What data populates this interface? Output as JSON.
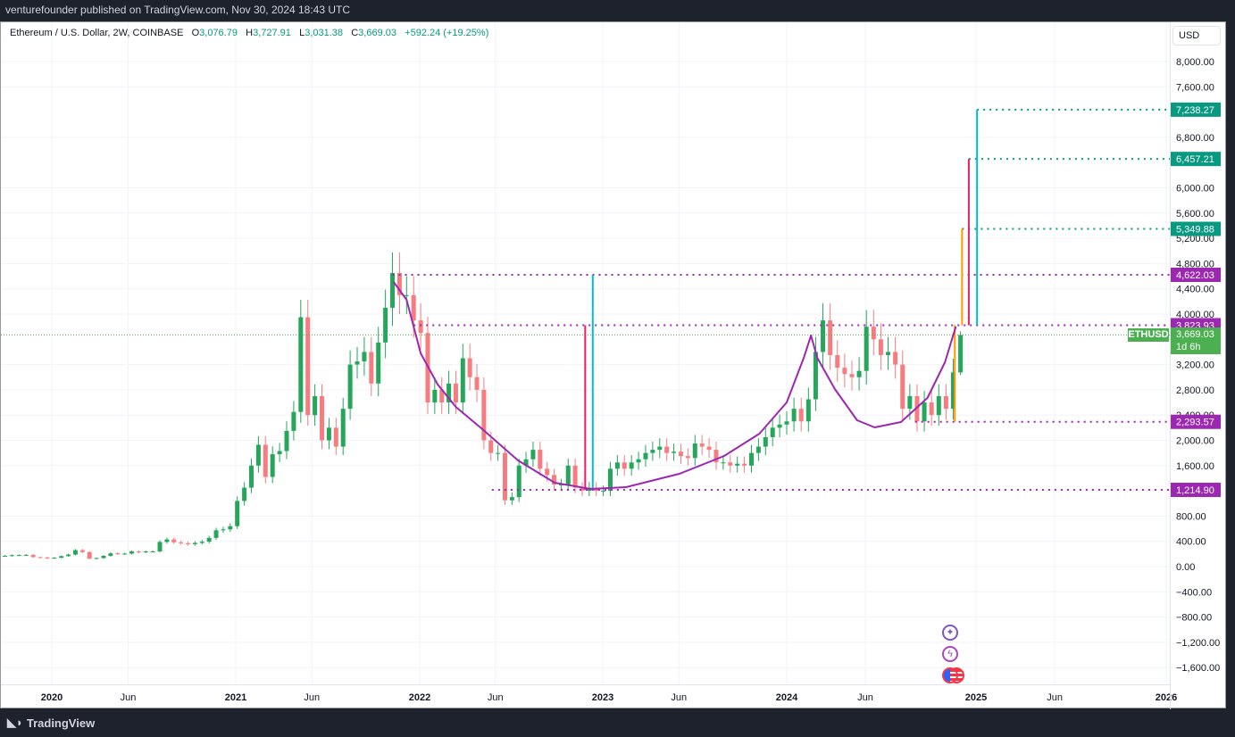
{
  "published": "venturefounder published on TradingView.com, Nov 30, 2024 18:43 UTC",
  "legend": {
    "symbol": "Ethereum / U.S. Dollar, 2W, COINBASE",
    "o_label": "O",
    "o": "3,076.79",
    "h_label": "H",
    "h": "3,727.91",
    "l_label": "L",
    "l": "3,031.38",
    "c_label": "C",
    "c": "3,669.03",
    "change": "+592.24 (+19.25%)"
  },
  "currency": "USD",
  "brand": "TradingView",
  "price_tag": {
    "symbol": "ETHUSD",
    "price": "3,669.03",
    "countdown": "1d 6h",
    "color": "#4caf50"
  },
  "colors": {
    "up": "#26a65b",
    "down": "#f77c80",
    "curve": "#9c27b0",
    "level": "#9c27b0",
    "target": "#089981",
    "cyan": "#00bcd4",
    "red": "#e91e63",
    "orange": "#ff9800"
  },
  "event_icons": [
    "sparkle-icon",
    "lightning-icon",
    "us-flag-icon"
  ],
  "chart_data": {
    "type": "candlestick",
    "interval": "2W",
    "yticks": [
      8000,
      7600,
      6800,
      6000,
      5600,
      5200,
      4800,
      4400,
      4000,
      3200,
      2800,
      2400,
      2000,
      1600,
      800,
      400,
      0,
      -400,
      -800,
      -1200,
      -1600
    ],
    "ylim": [
      -1900,
      8400
    ],
    "xticks": [
      {
        "label": "2020",
        "date": "2020-01-01"
      },
      {
        "label": "Jun",
        "date": "2020-06-01"
      },
      {
        "label": "2021",
        "date": "2021-01-01"
      },
      {
        "label": "Jun",
        "date": "2021-06-01"
      },
      {
        "label": "2022",
        "date": "2022-01-01"
      },
      {
        "label": "Jun",
        "date": "2022-06-01"
      },
      {
        "label": "2023",
        "date": "2023-01-01"
      },
      {
        "label": "Jun",
        "date": "2023-06-01"
      },
      {
        "label": "2024",
        "date": "2024-01-01"
      },
      {
        "label": "Jun",
        "date": "2024-06-01"
      },
      {
        "label": "2025",
        "date": "2025-01-01"
      },
      {
        "label": "Jun",
        "date": "2025-06-01"
      },
      {
        "label": "2026",
        "date": "2026-01-01"
      }
    ],
    "start": "2019-09-23",
    "closes": [
      170,
      180,
      182,
      185,
      150,
      145,
      130,
      140,
      165,
      190,
      260,
      230,
      125,
      135,
      170,
      210,
      200,
      205,
      240,
      230,
      240,
      240,
      390,
      430,
      385,
      370,
      355,
      375,
      395,
      455,
      575,
      590,
      640,
      1040,
      1250,
      1600,
      1930,
      1420,
      1780,
      1830,
      2150,
      2450,
      3950,
      2400,
      2700,
      2000,
      2200,
      1900,
      2500,
      3200,
      3250,
      3400,
      2900,
      3550,
      4100,
      4650,
      4300,
      4300,
      3900,
      3700,
      2600,
      2800,
      2600,
      2900,
      2600,
      3300,
      3000,
      2800,
      2000,
      1800,
      1800,
      1050,
      1100,
      1600,
      1700,
      1850,
      1550,
      1450,
      1300,
      1300,
      1600,
      1250,
      1200,
      1250,
      1200,
      1200,
      1550,
      1650,
      1550,
      1650,
      1700,
      1800,
      1850,
      1900,
      1800,
      1820,
      1750,
      1720,
      1950,
      1900,
      1850,
      1650,
      1650,
      1600,
      1630,
      1600,
      1800,
      1900,
      2050,
      2200,
      2250,
      2300,
      2500,
      2300,
      2650,
      3400,
      3900,
      3350,
      3150,
      3050,
      3000,
      3100,
      3800,
      3600,
      3350,
      3400,
      3200,
      2500,
      2700,
      2300,
      2600,
      2400,
      2700,
      2500,
      3076.79,
      3669.03
    ],
    "last": {
      "o": 3076.79,
      "h": 3727.91,
      "l": 3031.38,
      "c": 3669.03
    },
    "curve": [
      [
        "2021-11-10",
        4510
      ],
      [
        "2021-12-06",
        4226
      ],
      [
        "2022-01-03",
        3378
      ],
      [
        "2022-02-06",
        2883
      ],
      [
        "2022-03-14",
        2530
      ],
      [
        "2022-05-06",
        2177
      ],
      [
        "2022-07-16",
        1682
      ],
      [
        "2022-09-27",
        1329
      ],
      [
        "2022-12-08",
        1230
      ],
      [
        "2023-02-16",
        1258
      ],
      [
        "2023-06-02",
        1470
      ],
      [
        "2023-08-30",
        1753
      ],
      [
        "2023-11-08",
        2106
      ],
      [
        "2024-01-01",
        2601
      ],
      [
        "2024-02-03",
        3307
      ],
      [
        "2024-02-17",
        3661
      ],
      [
        "2024-02-29",
        3307
      ],
      [
        "2024-04-03",
        2813
      ],
      [
        "2024-05-16",
        2318
      ],
      [
        "2024-06-19",
        2205
      ],
      [
        "2024-08-09",
        2290
      ],
      [
        "2024-09-29",
        2671
      ],
      [
        "2024-11-02",
        3237
      ],
      [
        "2024-11-23",
        3802
      ]
    ],
    "levels": [
      {
        "value": 7238.27,
        "label": "7,238.27",
        "from": "2025-01-03",
        "color": "target"
      },
      {
        "value": 6457.21,
        "label": "6,457.21",
        "from": "2024-12-18",
        "color": "target"
      },
      {
        "value": 5349.88,
        "label": "5,349.88",
        "from": "2024-12-05",
        "color": "target"
      },
      {
        "value": 4622.03,
        "label": "4,622.03",
        "from": "2021-11-08",
        "color": "level"
      },
      {
        "value": 3823.93,
        "label": "3,823.93",
        "from": "2021-12-20",
        "color": "level"
      },
      {
        "value": 2293.57,
        "label": "2,293.57",
        "from": "2024-09-05",
        "color": "level"
      },
      {
        "value": 1214.9,
        "label": "1,214.90",
        "from": "2022-05-25",
        "color": "level"
      }
    ],
    "verticals": [
      {
        "date": "2022-11-27",
        "from": 1214.9,
        "to": 3823.93,
        "color": "red"
      },
      {
        "date": "2022-12-12",
        "from": 1214.9,
        "to": 4622.03,
        "color": "cyan"
      },
      {
        "date": "2024-11-21",
        "from": 2293.57,
        "to": 3823.93,
        "color": "orange"
      },
      {
        "date": "2024-12-05",
        "from": 3823.93,
        "to": 5349.88,
        "color": "orange"
      },
      {
        "date": "2024-12-18",
        "from": 3823.93,
        "to": 6457.21,
        "color": "red"
      },
      {
        "date": "2025-01-03",
        "from": 3823.93,
        "to": 7238.27,
        "color": "cyan"
      }
    ]
  }
}
